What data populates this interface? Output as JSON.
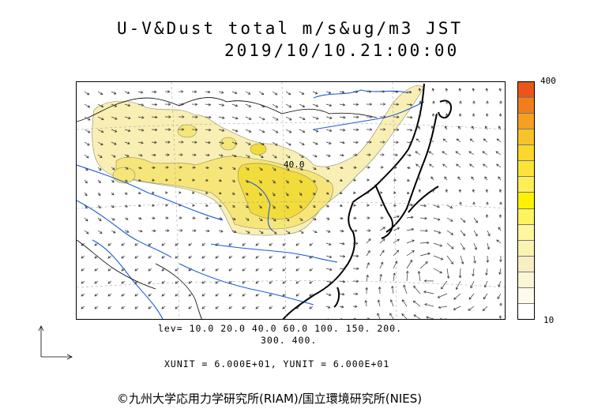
{
  "title": "U-V&Dust total m/s&ug/m3 JST",
  "datetime": "2019/10/10.21:00:00",
  "colorbar": {
    "max_label": "400",
    "min_label": "10",
    "colors": [
      "#e8561a",
      "#f07e1d",
      "#f5a020",
      "#f8c22a",
      "#f9d72e",
      "#fbe43a",
      "#fbee56",
      "#fff200",
      "#fff45f",
      "#fff69e",
      "#fbf3b0",
      "#f9eec2",
      "#fcf6d6",
      "#fefbeb",
      "#ffffff"
    ]
  },
  "levels": {
    "line1": "lev= 10.0 20.0 40.0 60.0 100. 150. 200.",
    "line2": "300. 400."
  },
  "units_line": "XUNIT = 6.000E+01, YUNIT = 6.000E+01",
  "contour_label": "40.0",
  "copyright": "©九州大学応用力学研究所(RIAM)/国立環境研究所(NIES)",
  "map_colors": {
    "dust_light": "#f9efb4",
    "dust_mid": "#f6e67a",
    "dust_high": "#f2dc3c",
    "river": "#1f5ad6",
    "coast": "#000000",
    "border": "#000000",
    "vector": "#333333",
    "grid": "#999999"
  },
  "icons": {
    "axis_reference": "axis-reference-icon"
  }
}
